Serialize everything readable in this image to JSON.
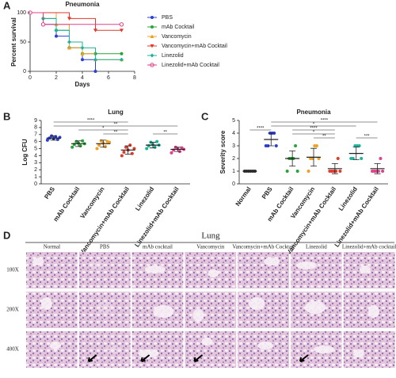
{
  "chart_data": [
    {
      "type": "line",
      "panel": "A",
      "title": "Pneumonia",
      "xlabel": "Days",
      "ylabel": "Percent survival",
      "xlim": [
        0,
        8
      ],
      "xticks": [
        0,
        2,
        4,
        6,
        8
      ],
      "ylim": [
        0,
        100
      ],
      "yticks": [
        0,
        50,
        100
      ],
      "series": [
        {
          "name": "PBS",
          "color": "#2b3fd6",
          "marker": "circle",
          "x": [
            0,
            1,
            2,
            3,
            4,
            5
          ],
          "values": [
            100,
            80,
            60,
            40,
            20,
            0
          ]
        },
        {
          "name": "mAb Cocktail",
          "color": "#2aa23a",
          "marker": "circle",
          "x": [
            0,
            1,
            2,
            3,
            4,
            5,
            7
          ],
          "values": [
            100,
            90,
            70,
            40,
            30,
            30,
            30
          ]
        },
        {
          "name": "Vancomycin",
          "color": "#f0a020",
          "marker": "triangle",
          "x": [
            0,
            2,
            3,
            4,
            5,
            7
          ],
          "values": [
            100,
            80,
            40,
            30,
            20,
            20
          ]
        },
        {
          "name": "Vancomycin+mAb Cocktail",
          "color": "#e03a2a",
          "marker": "triangle-down",
          "x": [
            0,
            3,
            5,
            7
          ],
          "values": [
            100,
            90,
            70,
            70
          ]
        },
        {
          "name": "Linezolid",
          "color": "#1bb39a",
          "marker": "diamond",
          "x": [
            0,
            1,
            2,
            3,
            4,
            5,
            7
          ],
          "values": [
            100,
            90,
            70,
            50,
            40,
            20,
            20
          ]
        },
        {
          "name": "Linezolid+mAb Cocktail",
          "color": "#e0408a",
          "marker": "open-circle",
          "x": [
            0,
            1,
            7
          ],
          "values": [
            100,
            80,
            80
          ]
        }
      ]
    },
    {
      "type": "dot",
      "panel": "B",
      "title": "Lung",
      "ylabel": "Log CFU",
      "ylim": [
        0,
        9
      ],
      "yticks": [
        0,
        1,
        2,
        3,
        4,
        5,
        6,
        7,
        8,
        9
      ],
      "categories": [
        "PBS",
        "mAb Cocktail",
        "Vancomycin",
        "Vancomycin+mAb Cocktail",
        "Linezolid",
        "Linezolid+mAb Cocktail"
      ],
      "colors": [
        "#2b3fd6",
        "#2aa23a",
        "#f0a020",
        "#e03a2a",
        "#1bb39a",
        "#e0408a"
      ],
      "values": [
        [
          6.2,
          6.5,
          6.8,
          6.4,
          6.7,
          6.3,
          6.6
        ],
        [
          5.2,
          5.6,
          6.0,
          5.8,
          5.4,
          6.1,
          5.7
        ],
        [
          5.0,
          5.5,
          6.1,
          5.8,
          5.3,
          6.0,
          5.9
        ],
        [
          4.0,
          4.5,
          5.2,
          4.8,
          5.5,
          4.3,
          5.0
        ],
        [
          5.0,
          5.4,
          5.9,
          5.6,
          5.2,
          6.0,
          5.5
        ],
        [
          4.4,
          4.8,
          5.2,
          5.0,
          4.6,
          5.1,
          4.9
        ]
      ],
      "means": [
        6.5,
        5.7,
        5.7,
        4.8,
        5.5,
        4.9
      ],
      "errors": [
        0.3,
        0.4,
        0.5,
        0.6,
        0.4,
        0.3
      ],
      "annotations": [
        "****",
        "**",
        "*",
        "**",
        "**"
      ]
    },
    {
      "type": "dot",
      "panel": "C",
      "title": "Pneumonia",
      "ylabel": "Severity score",
      "ylim": [
        0,
        5
      ],
      "yticks": [
        0,
        1,
        2,
        3,
        4,
        5
      ],
      "categories": [
        "Normal",
        "PBS",
        "mAb Cocktail",
        "Vancomycin",
        "Vancomycin+mAb Cocktail",
        "Linezolid",
        "Linezolid+mAb Cocktail"
      ],
      "colors": [
        "#333333",
        "#2b3fd6",
        "#2aa23a",
        "#f0a020",
        "#e03a2a",
        "#1bb39a",
        "#e0408a"
      ],
      "values": [
        [
          1,
          1,
          1,
          1,
          1,
          1
        ],
        [
          3,
          3,
          4,
          4,
          4,
          3
        ],
        [
          1,
          2,
          2,
          2,
          3,
          1
        ],
        [
          1,
          2,
          2,
          3,
          3,
          2
        ],
        [
          1,
          1,
          1,
          1,
          2,
          1
        ],
        [
          2,
          2,
          3,
          3,
          3,
          2
        ],
        [
          1,
          1,
          1,
          1,
          2,
          1
        ]
      ],
      "means": [
        1,
        3.5,
        2,
        2.1,
        1.2,
        2.4,
        1.2
      ],
      "errors": [
        0,
        0.5,
        0.6,
        0.7,
        0.4,
        0.5,
        0.4
      ],
      "annotations": [
        "****",
        "****",
        "*",
        "****",
        "*",
        "**",
        "***"
      ]
    }
  ],
  "panel_d": {
    "panel": "D",
    "title": "Lung",
    "columns": [
      "Normal",
      "PBS",
      "mAb cocktail",
      "Vancomycin",
      "Vancomycin+mAb Cocktail",
      "Linezolid",
      "Linezolid+mAb cocktail"
    ],
    "rows": [
      "100X",
      "200X",
      "400X"
    ]
  }
}
